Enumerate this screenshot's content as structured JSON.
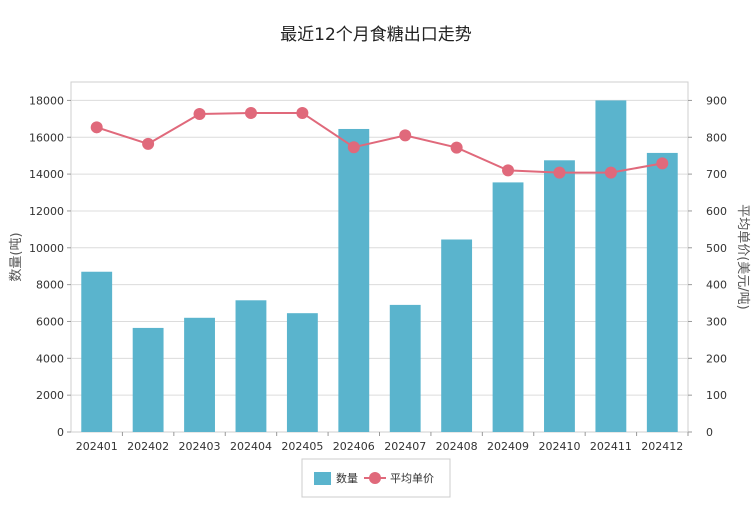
{
  "chart_data": {
    "type": "bar",
    "title": "最近12个月食糖出口走势",
    "categories": [
      "202401",
      "202402",
      "202403",
      "202404",
      "202405",
      "202406",
      "202407",
      "202408",
      "202409",
      "202410",
      "202411",
      "202412"
    ],
    "series": [
      {
        "name": "数量",
        "type": "bar",
        "axis": "left",
        "color": "#5ab4cd",
        "values": [
          8700,
          5650,
          6200,
          7150,
          6450,
          16450,
          6900,
          10450,
          13550,
          14750,
          18000,
          15150
        ]
      },
      {
        "name": "平均单价",
        "type": "line",
        "axis": "right",
        "color": "#e0697b",
        "values": [
          827,
          782,
          863,
          866,
          866,
          773,
          805,
          772,
          710,
          704,
          704,
          729
        ]
      }
    ],
    "ylabel": "数量(吨)",
    "y2label": "平均单价(美元/吨)",
    "ylim": [
      0,
      19000
    ],
    "y2lim": [
      0,
      950
    ],
    "yticks": [
      0,
      2000,
      4000,
      6000,
      8000,
      10000,
      12000,
      14000,
      16000,
      18000
    ],
    "y2ticks": [
      0,
      100,
      200,
      300,
      400,
      500,
      600,
      700,
      800,
      900
    ],
    "grid": true,
    "legend": "bottom-center"
  }
}
